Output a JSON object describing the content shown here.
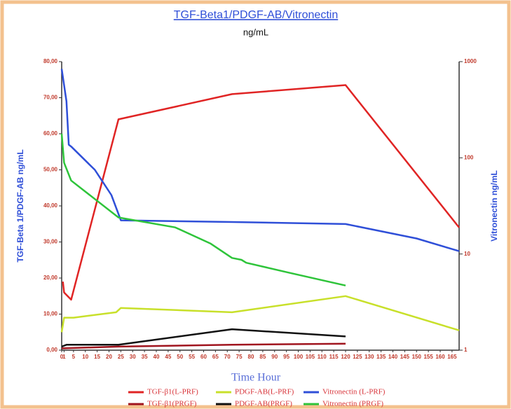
{
  "chart_data": {
    "type": "line",
    "title": "TGF-Beta1/PDGF-AB/Vitronectin",
    "subtitle": "ng/mL",
    "x_label": "Time Hour",
    "y_label": "TGF-Beta 1/PDGF-AB ng/mL",
    "y2_label": "Vitronectin  ng/mL",
    "xlim": [
      0,
      168
    ],
    "xticks": [
      0,
      1,
      5,
      10,
      15,
      20,
      25,
      30,
      35,
      40,
      45,
      50,
      55,
      60,
      65,
      70,
      75,
      80,
      85,
      90,
      95,
      100,
      105,
      110,
      115,
      120,
      125,
      130,
      135,
      140,
      145,
      150,
      155,
      160,
      165
    ],
    "ylim": [
      0,
      80
    ],
    "yticks": [
      {
        "value": 0,
        "label": "0,00"
      },
      {
        "value": 10,
        "label": "10,00"
      },
      {
        "value": 20,
        "label": "20,00"
      },
      {
        "value": 30,
        "label": "30,00"
      },
      {
        "value": 40,
        "label": "40,00"
      },
      {
        "value": 50,
        "label": "50,00"
      },
      {
        "value": 60,
        "label": "60,00"
      },
      {
        "value": 70,
        "label": "70,00"
      },
      {
        "value": 80,
        "label": "80,00"
      }
    ],
    "y2lim": [
      1,
      1000
    ],
    "y2ticks": [
      1,
      10,
      100,
      1000
    ],
    "y2_log": true,
    "series": [
      {
        "name": "TGF-β1(L-PRF)",
        "color": "#e02424",
        "x": [
          0.5,
          1,
          4,
          24,
          72,
          120,
          168
        ],
        "values": [
          19,
          16,
          14,
          64,
          71,
          73.5,
          34
        ]
      },
      {
        "name": "PDGF-AB(L-PRF)",
        "color": "#c8e02a",
        "x": [
          0,
          1,
          5,
          23,
          25,
          72,
          120,
          168
        ],
        "values": [
          5,
          9,
          9,
          10.5,
          11.7,
          10.5,
          15,
          5.5
        ]
      },
      {
        "name": "Vitronectin (L-PRF)",
        "color": "#2f4fd8",
        "axis": "y2",
        "x": [
          0,
          2,
          3,
          4,
          14,
          21,
          25,
          72,
          120,
          150,
          168
        ],
        "values": [
          840,
          387,
          137,
          131,
          75,
          41,
          22.4,
          21.5,
          20.5,
          14.5,
          10.7
        ]
      },
      {
        "name": "TGF-β1(PRGF)",
        "color": "#a0141e",
        "x": [
          0,
          24,
          72,
          120
        ],
        "values": [
          0.5,
          1,
          1.5,
          1.8
        ]
      },
      {
        "name": "PDGF-AB(PRGF)",
        "color": "#111111",
        "x": [
          0,
          2,
          24,
          72,
          120
        ],
        "values": [
          1,
          1.5,
          1.5,
          5.8,
          3.8
        ]
      },
      {
        "name": "Vitronectin (PRGF)",
        "color": "#2ec43a",
        "axis": "y2",
        "x": [
          0,
          1,
          4,
          24,
          48,
          63,
          72,
          76,
          78,
          96,
          120
        ],
        "values": [
          178,
          89,
          58,
          24,
          18.9,
          12.8,
          9.1,
          8.7,
          8.1,
          6.4,
          4.7
        ]
      }
    ]
  }
}
